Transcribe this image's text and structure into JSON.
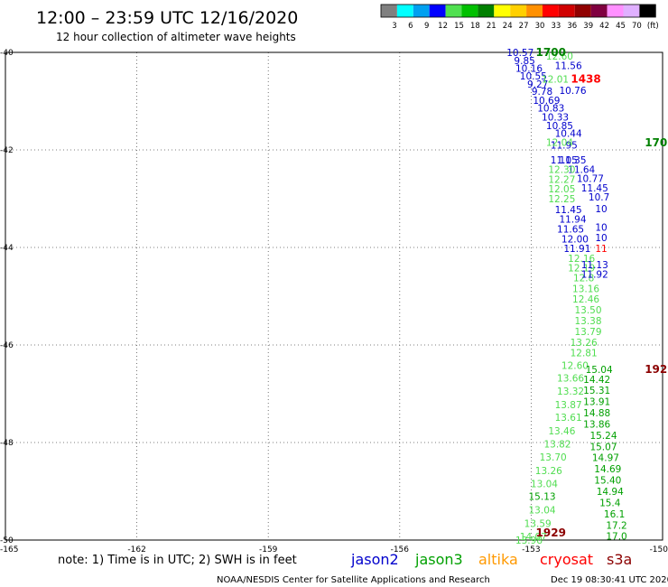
{
  "header": {
    "title": "12:00 – 23:59 UTC 12/16/2020",
    "subtitle": "12 hour collection of altimeter wave heights"
  },
  "colorbar": {
    "labels": [
      "3",
      "6",
      "9",
      "12",
      "15",
      "18",
      "21",
      "24",
      "27",
      "30",
      "33",
      "36",
      "39",
      "42",
      "45",
      "70",
      "(ft)"
    ],
    "colors": [
      "#808080",
      "#00ffff",
      "#00a0f0",
      "#0000ff",
      "#50e050",
      "#00c000",
      "#008000",
      "#ffff00",
      "#ffd000",
      "#ff9000",
      "#ff0000",
      "#d00000",
      "#900000",
      "#800040",
      "#ff90ff",
      "#e0b0ff",
      "#000000"
    ]
  },
  "axes": {
    "y_labels": [
      "-40",
      "-42",
      "-44",
      "-46",
      "-48",
      "-50"
    ],
    "x_labels": [
      "-165",
      "-162",
      "-159",
      "-156",
      "-153",
      "-150"
    ]
  },
  "note": "note: 1) Time is in UTC; 2) SWH is in feet",
  "satellites": [
    {
      "name": "jason2",
      "color": "#0000cc"
    },
    {
      "name": "jason3",
      "color": "#00a000"
    },
    {
      "name": "altika",
      "color": "#ff9900"
    },
    {
      "name": "cryosat",
      "color": "#ff0000"
    },
    {
      "name": "s3a",
      "color": "#8b0000"
    }
  ],
  "footer": {
    "credit": "NOAA/NESDIS Center for Satellite Applications and Research",
    "timestamp": "Dec 19 08:30:41 UTC 2020"
  },
  "time_labels": [
    {
      "text": "1700",
      "color": "#008000",
      "lon": -152.55,
      "lat": -40.0
    },
    {
      "text": "1438",
      "color": "#ff0000",
      "lon": -151.75,
      "lat": -40.55
    },
    {
      "text": "170",
      "color": "#008000",
      "lon": -150.15,
      "lat": -41.85
    },
    {
      "text": "192",
      "color": "#8b0000",
      "lon": -150.15,
      "lat": -46.5
    },
    {
      "text": "1929",
      "color": "#8b0000",
      "lon": -152.55,
      "lat": -49.85
    }
  ],
  "tracks": [
    {
      "satellite": "jason2",
      "points": [
        {
          "lon": -153.25,
          "lat": -40.0,
          "swh": "10.57"
        },
        {
          "lon": -153.15,
          "lat": -40.17,
          "swh": "9.85"
        },
        {
          "lon": -153.05,
          "lat": -40.32,
          "swh": "10.16"
        },
        {
          "lon": -152.95,
          "lat": -40.48,
          "swh": "10.55"
        },
        {
          "lon": -152.85,
          "lat": -40.65,
          "swh": "9.27"
        },
        {
          "lon": -152.75,
          "lat": -40.8,
          "swh": "9.78"
        },
        {
          "lon": -152.65,
          "lat": -40.98,
          "swh": "10.69"
        },
        {
          "lon": -152.55,
          "lat": -41.14,
          "swh": "10.83"
        },
        {
          "lon": -152.45,
          "lat": -41.32,
          "swh": "10.33"
        },
        {
          "lon": -152.35,
          "lat": -41.5,
          "swh": "10.85"
        },
        {
          "lon": -152.25,
          "lat": -41.9,
          "swh": "11.95"
        },
        {
          "lon": -152.05,
          "lat": -42.2,
          "swh": "11.35"
        },
        {
          "lon": -151.85,
          "lat": -42.4,
          "swh": "11.64"
        },
        {
          "lon": -151.65,
          "lat": -42.58,
          "swh": "10.77"
        },
        {
          "lon": -151.55,
          "lat": -42.78,
          "swh": "11.45"
        },
        {
          "lon": -151.45,
          "lat": -42.96,
          "swh": "10.7"
        }
      ]
    },
    {
      "satellite": "jason2",
      "points": [
        {
          "lon": -152.15,
          "lat": -40.27,
          "swh": "11.56"
        },
        {
          "lon": -152.05,
          "lat": -40.78,
          "swh": "10.76"
        },
        {
          "lon": -152.15,
          "lat": -41.66,
          "swh": "10.44"
        },
        {
          "lon": -152.25,
          "lat": -42.2,
          "swh": "11.05"
        },
        {
          "lon": -152.15,
          "lat": -43.22,
          "swh": "11.45"
        },
        {
          "lon": -152.05,
          "lat": -43.42,
          "swh": "11.94"
        },
        {
          "lon": -152.1,
          "lat": -43.62,
          "swh": "11.65"
        },
        {
          "lon": -152.0,
          "lat": -43.82,
          "swh": "12.00"
        },
        {
          "lon": -151.95,
          "lat": -44.02,
          "swh": "11.91"
        }
      ]
    },
    {
      "satellite": "jason3",
      "points": [
        {
          "lon": -152.35,
          "lat": -40.07,
          "swh": "12.60"
        },
        {
          "lon": -152.45,
          "lat": -40.55,
          "swh": "12.01"
        },
        {
          "lon": -152.35,
          "lat": -41.84,
          "swh": "12.04"
        },
        {
          "lon": -152.3,
          "lat": -42.4,
          "swh": "12.30"
        },
        {
          "lon": -152.3,
          "lat": -42.6,
          "swh": "12.27"
        },
        {
          "lon": -152.3,
          "lat": -42.8,
          "swh": "12.05"
        },
        {
          "lon": -152.3,
          "lat": -43.0,
          "swh": "12.25"
        },
        {
          "lon": -151.85,
          "lat": -44.22,
          "swh": "12.16"
        },
        {
          "lon": -151.85,
          "lat": -44.42,
          "swh": "12.19"
        },
        {
          "lon": -151.8,
          "lat": -44.62,
          "swh": "12.8"
        },
        {
          "lon": -151.75,
          "lat": -44.84,
          "swh": "13.16"
        },
        {
          "lon": -151.75,
          "lat": -45.06,
          "swh": "12.46"
        },
        {
          "lon": -151.7,
          "lat": -45.28,
          "swh": "13.50"
        },
        {
          "lon": -151.7,
          "lat": -45.5,
          "swh": "13.38"
        },
        {
          "lon": -151.7,
          "lat": -45.72,
          "swh": "13.79"
        },
        {
          "lon": -151.8,
          "lat": -45.94,
          "swh": "13.26"
        },
        {
          "lon": -151.8,
          "lat": -46.16,
          "swh": "12.81"
        },
        {
          "lon": -152.0,
          "lat": -46.42,
          "swh": "12.60"
        },
        {
          "lon": -152.1,
          "lat": -46.68,
          "swh": "13.66"
        },
        {
          "lon": -152.1,
          "lat": -46.94,
          "swh": "13.32"
        },
        {
          "lon": -152.15,
          "lat": -47.22,
          "swh": "13.87"
        },
        {
          "lon": -152.15,
          "lat": -47.48,
          "swh": "13.61"
        },
        {
          "lon": -152.3,
          "lat": -47.76,
          "swh": "13.46"
        },
        {
          "lon": -152.4,
          "lat": -48.03,
          "swh": "13.82"
        },
        {
          "lon": -152.5,
          "lat": -48.3,
          "swh": "13.70"
        },
        {
          "lon": -152.6,
          "lat": -48.57,
          "swh": "13.26"
        },
        {
          "lon": -152.7,
          "lat": -48.84,
          "swh": "13.04"
        },
        {
          "lon": -152.75,
          "lat": -49.38,
          "swh": "13.04"
        },
        {
          "lon": -152.85,
          "lat": -49.66,
          "swh": "13.59"
        },
        {
          "lon": -152.95,
          "lat": -49.93,
          "swh": "14.07"
        },
        {
          "lon": -153.05,
          "lat": -50.0,
          "swh": "13.98"
        }
      ]
    },
    {
      "satellite": "jason3_dark",
      "points": [
        {
          "lon": -151.45,
          "lat": -46.5,
          "swh": "15.04"
        },
        {
          "lon": -151.5,
          "lat": -46.7,
          "swh": "14.42"
        },
        {
          "lon": -151.5,
          "lat": -46.93,
          "swh": "15.31"
        },
        {
          "lon": -151.5,
          "lat": -47.16,
          "swh": "13.91"
        },
        {
          "lon": -151.5,
          "lat": -47.39,
          "swh": "14.88"
        },
        {
          "lon": -151.5,
          "lat": -47.62,
          "swh": "13.86"
        },
        {
          "lon": -151.35,
          "lat": -47.85,
          "swh": "15.24"
        },
        {
          "lon": -151.35,
          "lat": -48.08,
          "swh": "15.07"
        },
        {
          "lon": -151.3,
          "lat": -48.31,
          "swh": "14.97"
        },
        {
          "lon": -151.25,
          "lat": -48.54,
          "swh": "14.69"
        },
        {
          "lon": -151.25,
          "lat": -48.77,
          "swh": "15.40"
        },
        {
          "lon": -151.2,
          "lat": -49.0,
          "swh": "14.94"
        },
        {
          "lon": -151.2,
          "lat": -49.23,
          "swh": "15.4"
        },
        {
          "lon": -152.75,
          "lat": -49.1,
          "swh": "15.13"
        },
        {
          "lon": -151.1,
          "lat": -49.46,
          "swh": "16.1"
        },
        {
          "lon": -151.05,
          "lat": -49.69,
          "swh": "17.2"
        },
        {
          "lon": -151.05,
          "lat": -49.92,
          "swh": "17.0"
        }
      ]
    },
    {
      "satellite": "jason2",
      "points": [
        {
          "lon": -151.4,
          "lat": -43.2,
          "swh": "10"
        },
        {
          "lon": -151.4,
          "lat": -43.58,
          "swh": "10"
        },
        {
          "lon": -151.4,
          "lat": -43.8,
          "swh": "10"
        },
        {
          "lon": -151.55,
          "lat": -44.35,
          "swh": "11.13"
        },
        {
          "lon": -151.55,
          "lat": -44.55,
          "swh": "11.92"
        }
      ]
    },
    {
      "satellite": "cryosat",
      "points": [
        {
          "lon": -151.4,
          "lat": -44.02,
          "swh": "11"
        }
      ]
    }
  ]
}
